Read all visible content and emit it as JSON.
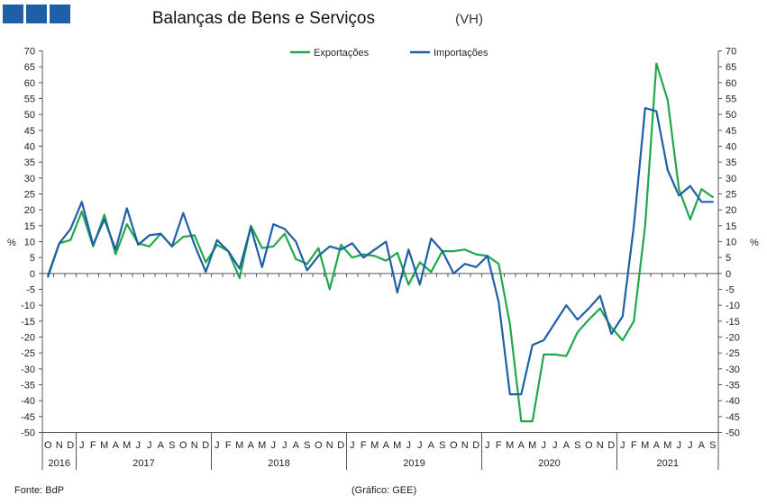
{
  "header": {
    "title": "Balanças de Bens e Serviços",
    "subtitle": "(VH)",
    "logo_color": "#1f5fa6"
  },
  "footer": {
    "source": "Fonte: BdP",
    "credit": "(Gráfico: GEE)"
  },
  "chart_data": {
    "type": "line",
    "ylabel_left": "%",
    "ylabel_right": "%",
    "ylim": [
      -50,
      70
    ],
    "yticks": [
      70,
      65,
      60,
      55,
      50,
      45,
      40,
      35,
      30,
      25,
      20,
      15,
      10,
      5,
      0,
      -5,
      -10,
      -15,
      -20,
      -25,
      -30,
      -35,
      -40,
      -45,
      -50
    ],
    "legend_position": "top-center",
    "grid": false,
    "month_labels": [
      "O",
      "N",
      "D",
      "J",
      "F",
      "M",
      "A",
      "M",
      "J",
      "J",
      "A",
      "S",
      "O",
      "N",
      "D",
      "J",
      "F",
      "M",
      "A",
      "M",
      "J",
      "J",
      "A",
      "S",
      "O",
      "N",
      "D",
      "J",
      "F",
      "M",
      "A",
      "M",
      "J",
      "J",
      "A",
      "S",
      "O",
      "N",
      "D",
      "J",
      "F",
      "M",
      "A",
      "M",
      "J",
      "J",
      "A",
      "S",
      "O",
      "N",
      "D",
      "J",
      "F",
      "M",
      "A",
      "M",
      "J",
      "J",
      "A",
      "S"
    ],
    "years": [
      {
        "label": "2016",
        "start": 0,
        "count": 3
      },
      {
        "label": "2017",
        "start": 3,
        "count": 12
      },
      {
        "label": "2018",
        "start": 15,
        "count": 12
      },
      {
        "label": "2019",
        "start": 27,
        "count": 12
      },
      {
        "label": "2020",
        "start": 39,
        "count": 12
      },
      {
        "label": "2021",
        "start": 51,
        "count": 9
      }
    ],
    "series": [
      {
        "name": "Exportações",
        "color": "#1fa84a",
        "values": [
          -0.5,
          9.5,
          10.5,
          19.5,
          8.5,
          18.5,
          6,
          15.5,
          9.5,
          8.5,
          12.5,
          8.5,
          11.5,
          12,
          3.5,
          9,
          7,
          -1.5,
          15,
          8,
          8.5,
          12.5,
          4.5,
          3,
          8,
          -5,
          9,
          5,
          6,
          5.5,
          4,
          6.5,
          -3.5,
          3.5,
          0.5,
          7,
          7,
          7.5,
          6,
          5.5,
          3,
          -16,
          -46.5,
          -46.5,
          -25.5,
          -25.5,
          -26,
          -18.5,
          -14.5,
          -11,
          -17,
          -21,
          -15,
          15,
          66,
          54.5,
          26.5,
          17,
          26.5,
          24
        ]
      },
      {
        "name": "Importações",
        "color": "#1f5fa6",
        "values": [
          -1,
          9.5,
          14,
          22.5,
          9,
          17,
          7.5,
          20.5,
          9,
          12,
          12.5,
          8.5,
          19,
          9,
          0.5,
          10.5,
          7,
          1.5,
          14.5,
          2,
          15.5,
          14,
          10,
          1,
          5.5,
          8.5,
          7.5,
          9.5,
          5,
          7.5,
          10,
          -6,
          7.5,
          -3.5,
          11,
          7,
          0,
          3,
          2,
          5.5,
          -9,
          -38,
          -38,
          -22.5,
          -21,
          -15.5,
          -10,
          -14.5,
          -11,
          -7,
          -19,
          -13.5,
          15,
          52,
          51,
          32.5,
          24.5,
          27.5,
          22.5,
          22.5
        ]
      }
    ]
  }
}
